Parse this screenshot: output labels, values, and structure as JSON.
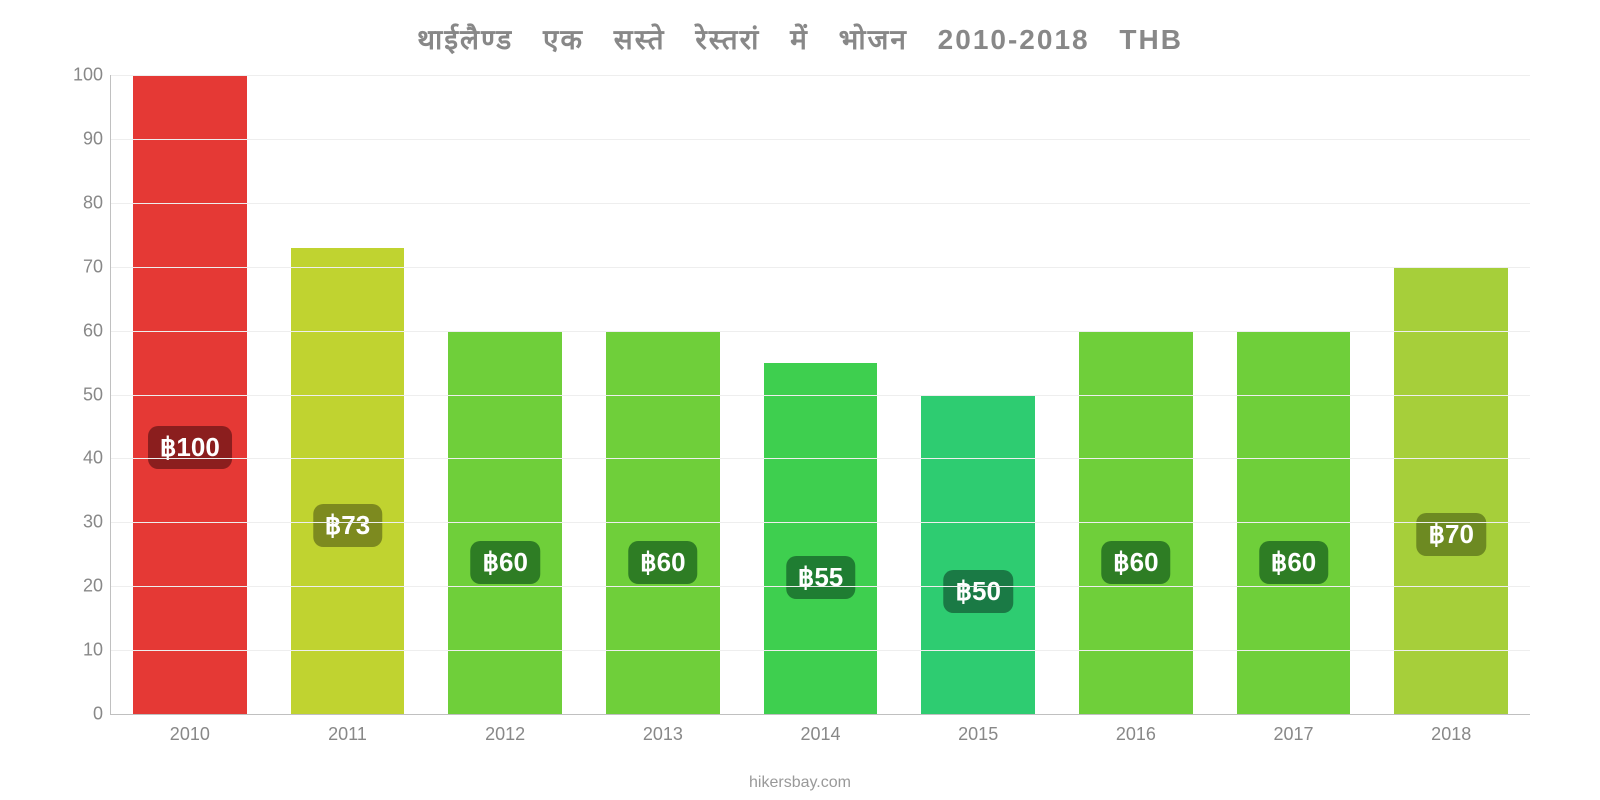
{
  "chart": {
    "type": "bar",
    "title": "थाईलैण्ड एक सस्ते रेस्तरां में भोजन 2010-2018 THB",
    "title_color": "#888888",
    "title_fontsize": 28,
    "footer": "hikersbay.com",
    "footer_color": "#999999",
    "background_color": "#ffffff",
    "grid_color": "#eeeeee",
    "axis_color": "#c0c0c0",
    "label_color": "#888888",
    "label_fontsize": 18,
    "badge_fontsize": 26,
    "ylim": [
      0,
      100
    ],
    "ytick_step": 10,
    "bar_width": 0.72,
    "currency_symbol": "฿",
    "categories": [
      "2010",
      "2011",
      "2012",
      "2013",
      "2014",
      "2015",
      "2016",
      "2017",
      "2018"
    ],
    "values": [
      100,
      73,
      60,
      60,
      55,
      50,
      60,
      60,
      70
    ],
    "labels": [
      "฿100",
      "฿73",
      "฿60",
      "฿60",
      "฿55",
      "฿50",
      "฿60",
      "฿60",
      "฿70"
    ],
    "bar_colors": [
      "#e53935",
      "#c0d330",
      "#6fcf3a",
      "#6fcf3a",
      "#3ecf4f",
      "#2ecc71",
      "#6fcf3a",
      "#6fcf3a",
      "#a6cf3a"
    ],
    "badge_bg_colors": [
      "#8b1e1e",
      "#7d8a1f",
      "#2e7d24",
      "#2e7d24",
      "#1f7d32",
      "#1a7a45",
      "#2e7d24",
      "#2e7d24",
      "#6d8a22"
    ],
    "badge_text_color": "#ffffff"
  }
}
